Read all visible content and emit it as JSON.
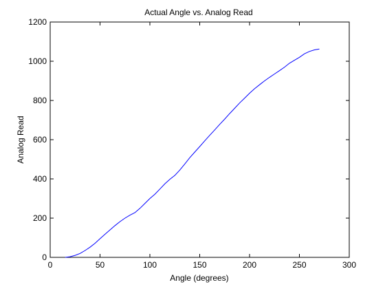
{
  "chart_data": {
    "type": "line",
    "title": "Actual Angle vs. Analog Read",
    "xlabel": "Angle (degrees)",
    "ylabel": "Analog Read",
    "xlim": [
      0,
      300
    ],
    "ylim": [
      0,
      1200
    ],
    "xticks": [
      0,
      50,
      100,
      150,
      200,
      250,
      300
    ],
    "yticks": [
      0,
      200,
      400,
      600,
      800,
      1000,
      1200
    ],
    "grid": false,
    "line_color": "#0000ff",
    "series": [
      {
        "x": [
          15,
          20,
          25,
          30,
          35,
          40,
          45,
          50,
          55,
          60,
          65,
          70,
          75,
          80,
          85,
          90,
          95,
          100,
          105,
          110,
          115,
          120,
          125,
          130,
          135,
          140,
          145,
          150,
          155,
          160,
          165,
          170,
          175,
          180,
          185,
          190,
          195,
          200,
          205,
          210,
          215,
          220,
          225,
          230,
          235,
          240,
          245,
          250,
          255,
          260,
          265,
          270
        ],
        "y": [
          0,
          3,
          10,
          20,
          35,
          52,
          72,
          95,
          118,
          140,
          162,
          182,
          200,
          215,
          228,
          250,
          275,
          300,
          322,
          348,
          375,
          398,
          418,
          445,
          476,
          508,
          537,
          565,
          594,
          622,
          650,
          678,
          705,
          733,
          760,
          787,
          812,
          837,
          860,
          880,
          900,
          918,
          935,
          952,
          970,
          990,
          1005,
          1020,
          1038,
          1050,
          1058,
          1062
        ]
      }
    ]
  }
}
